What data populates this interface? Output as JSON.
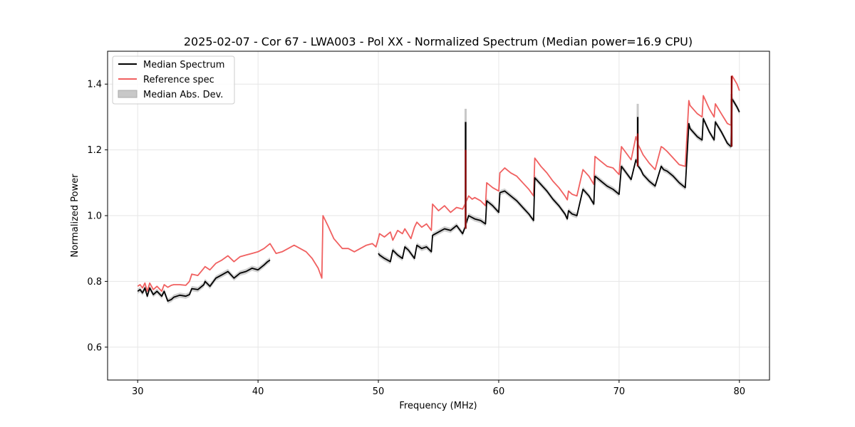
{
  "chart_data": {
    "type": "line",
    "title": "2025-02-07 - Cor 67 - LWA003 - Pol XX - Normalized Spectrum (Median power=16.9 CPU)",
    "xlabel": "Frequency (MHz)",
    "ylabel": "Normalized Power",
    "xlim": [
      27.5,
      82.5
    ],
    "ylim": [
      0.5,
      1.5
    ],
    "xticks": [
      30,
      40,
      50,
      60,
      70,
      80
    ],
    "yticks": [
      0.6,
      0.8,
      1.0,
      1.2,
      1.4
    ],
    "xtick_labels": [
      "30",
      "40",
      "50",
      "60",
      "70",
      "80"
    ],
    "ytick_labels": [
      "0.6",
      "0.8",
      "1.0",
      "1.2",
      "1.4"
    ],
    "grid": true,
    "legend_location": "top-left",
    "legend": [
      "Median Spectrum",
      "Reference spec",
      "Median Abs. Dev."
    ],
    "colors": {
      "median": "#000000",
      "reference": "#f06060",
      "mad": "#c8c8c8",
      "spike": "#8b0000"
    },
    "mad_halfwidth": 0.008,
    "series": [
      {
        "name": "Reference spec",
        "x": [
          30.0,
          30.2,
          30.4,
          30.6,
          30.8,
          31.0,
          31.3,
          31.6,
          32.0,
          32.2,
          32.5,
          32.8,
          33.0,
          33.5,
          34.0,
          34.3,
          34.5,
          35.0,
          35.5,
          35.6,
          36.0,
          36.5,
          37.0,
          37.5,
          38.0,
          38.5,
          39.0,
          39.5,
          40.0,
          40.5,
          41.0,
          41.5,
          42.0,
          42.5,
          43.0,
          43.5,
          44.0,
          44.5,
          45.0,
          45.3,
          45.4,
          45.8,
          46.3,
          47.0,
          47.5,
          48.0,
          48.5,
          49.0,
          49.5,
          49.8,
          50.0,
          50.1,
          50.5,
          51.0,
          51.2,
          51.6,
          52.0,
          52.2,
          52.7,
          53.0,
          53.2,
          53.6,
          54.0,
          54.4,
          54.5,
          55.0,
          55.5,
          56.0,
          56.5,
          57.0,
          57.2,
          57.5,
          57.8,
          58.0,
          58.5,
          58.9,
          59.0,
          59.5,
          60.0,
          60.1,
          60.5,
          61.0,
          61.5,
          62.0,
          62.5,
          62.9,
          63.0,
          63.5,
          64.0,
          64.5,
          65.0,
          65.5,
          65.7,
          65.8,
          66.1,
          66.5,
          67.0,
          67.5,
          67.9,
          68.0,
          68.5,
          69.0,
          69.5,
          70.0,
          70.2,
          70.5,
          71.0,
          71.4,
          71.6,
          71.8,
          72.0,
          72.5,
          73.0,
          73.5,
          73.7,
          74.0,
          74.5,
          75.0,
          75.5,
          75.8,
          75.9,
          76.5,
          76.9,
          77.0,
          77.5,
          77.9,
          78.0,
          78.5,
          79.0,
          79.3,
          79.4,
          79.8,
          80.0
        ],
        "values": [
          0.785,
          0.79,
          0.78,
          0.795,
          0.77,
          0.795,
          0.775,
          0.785,
          0.77,
          0.79,
          0.782,
          0.788,
          0.79,
          0.79,
          0.788,
          0.8,
          0.822,
          0.818,
          0.84,
          0.845,
          0.835,
          0.855,
          0.865,
          0.878,
          0.86,
          0.875,
          0.88,
          0.885,
          0.89,
          0.9,
          0.915,
          0.885,
          0.89,
          0.9,
          0.91,
          0.9,
          0.89,
          0.87,
          0.84,
          0.81,
          1.0,
          0.97,
          0.93,
          0.9,
          0.9,
          0.89,
          0.9,
          0.91,
          0.915,
          0.905,
          0.93,
          0.945,
          0.935,
          0.95,
          0.925,
          0.955,
          0.945,
          0.96,
          0.93,
          0.965,
          0.98,
          0.965,
          0.975,
          0.955,
          1.035,
          1.015,
          1.03,
          1.01,
          1.025,
          1.02,
          1.035,
          1.06,
          1.05,
          1.055,
          1.045,
          1.03,
          1.1,
          1.085,
          1.075,
          1.13,
          1.145,
          1.13,
          1.12,
          1.1,
          1.08,
          1.06,
          1.175,
          1.15,
          1.13,
          1.105,
          1.085,
          1.06,
          1.048,
          1.075,
          1.065,
          1.06,
          1.14,
          1.12,
          1.095,
          1.18,
          1.165,
          1.15,
          1.145,
          1.125,
          1.21,
          1.195,
          1.17,
          1.24,
          1.215,
          1.2,
          1.185,
          1.16,
          1.14,
          1.21,
          1.205,
          1.195,
          1.175,
          1.155,
          1.15,
          1.35,
          1.335,
          1.31,
          1.3,
          1.365,
          1.325,
          1.3,
          1.34,
          1.31,
          1.28,
          1.275,
          1.425,
          1.4,
          1.38
        ]
      },
      {
        "name": "Median Spectrum",
        "x": [
          30.0,
          30.2,
          30.4,
          30.6,
          30.8,
          31.0,
          31.3,
          31.6,
          32.0,
          32.2,
          32.5,
          32.8,
          33.0,
          33.5,
          34.0,
          34.3,
          34.5,
          35.0,
          35.5,
          35.6,
          36.0,
          36.5,
          37.0,
          37.5,
          38.0,
          38.5,
          39.0,
          39.5,
          40.0,
          40.5,
          40.8,
          41.0,
          null,
          50.0,
          50.1,
          50.5,
          51.0,
          51.2,
          51.6,
          52.0,
          52.2,
          52.5,
          53.0,
          53.2,
          53.6,
          54.0,
          54.4,
          54.5,
          55.0,
          55.5,
          56.0,
          56.5,
          57.0,
          57.2,
          57.5,
          58.0,
          58.5,
          58.9,
          59.0,
          59.5,
          60.0,
          60.1,
          60.5,
          61.0,
          61.5,
          62.0,
          62.5,
          62.9,
          63.0,
          63.5,
          64.0,
          64.5,
          65.0,
          65.5,
          65.7,
          65.8,
          66.1,
          66.5,
          67.0,
          67.5,
          67.9,
          68.0,
          68.5,
          69.0,
          69.5,
          70.0,
          70.2,
          70.5,
          71.0,
          71.4,
          71.6,
          71.8,
          72.0,
          72.5,
          73.0,
          73.5,
          73.7,
          74.0,
          74.5,
          75.0,
          75.5,
          75.8,
          75.9,
          76.5,
          76.9,
          77.0,
          77.5,
          77.9,
          78.0,
          78.5,
          79.0,
          79.3,
          79.4,
          79.8,
          80.0
        ],
        "values": [
          0.77,
          0.775,
          0.765,
          0.78,
          0.755,
          0.78,
          0.76,
          0.77,
          0.755,
          0.77,
          0.74,
          0.745,
          0.752,
          0.758,
          0.755,
          0.76,
          0.778,
          0.775,
          0.79,
          0.8,
          0.785,
          0.81,
          0.82,
          0.83,
          0.81,
          0.825,
          0.83,
          0.84,
          0.835,
          0.85,
          0.86,
          0.865,
          null,
          0.885,
          0.88,
          0.87,
          0.86,
          0.895,
          0.88,
          0.87,
          0.905,
          0.895,
          0.87,
          0.91,
          0.9,
          0.905,
          0.89,
          0.94,
          0.95,
          0.96,
          0.955,
          0.97,
          0.945,
          0.965,
          1.0,
          0.99,
          0.985,
          0.975,
          1.045,
          1.03,
          1.01,
          1.07,
          1.075,
          1.06,
          1.045,
          1.025,
          1.005,
          0.985,
          1.115,
          1.095,
          1.075,
          1.05,
          1.03,
          1.005,
          0.99,
          1.015,
          1.005,
          1.0,
          1.08,
          1.06,
          1.035,
          1.12,
          1.105,
          1.09,
          1.08,
          1.065,
          1.15,
          1.135,
          1.11,
          1.17,
          1.15,
          1.14,
          1.125,
          1.105,
          1.09,
          1.15,
          1.14,
          1.135,
          1.12,
          1.1,
          1.085,
          1.28,
          1.265,
          1.24,
          1.23,
          1.295,
          1.255,
          1.23,
          1.285,
          1.255,
          1.22,
          1.21,
          1.355,
          1.33,
          1.315
        ]
      }
    ],
    "spikes": [
      {
        "x": 57.25,
        "median_peak": 1.285,
        "mad_top": 1.325,
        "ref_peak": 1.2,
        "base": 0.96
      },
      {
        "x": 71.55,
        "median_peak": 1.3,
        "mad_top": 1.34,
        "ref_peak": 1.25,
        "base": 1.15
      },
      {
        "x": 79.35,
        "median_peak": 1.355,
        "mad_top": 1.37,
        "ref_peak": 1.425,
        "base": 1.21
      }
    ]
  }
}
